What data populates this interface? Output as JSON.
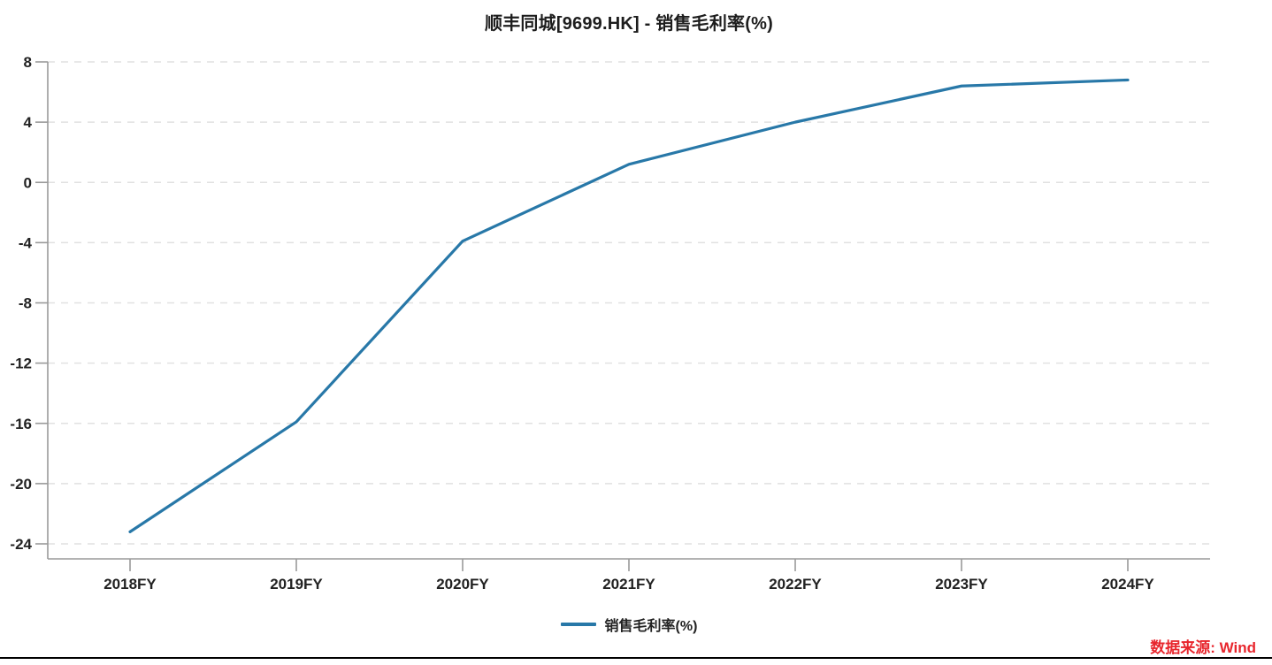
{
  "title": "顺丰同城[9699.HK] - 销售毛利率(%)",
  "legend": {
    "label": "销售毛利率(%)"
  },
  "source": {
    "text": "数据来源: Wind",
    "color": "#e8262d"
  },
  "colors": {
    "series_line": "#2878a8",
    "grid_line": "#e1e1e1",
    "axis_line": "#9a9a9a",
    "tick_label": "#222222",
    "title_text": "#1d1d1d",
    "source_text": "#e8262d",
    "background": "#ffffff",
    "bottom_rule": "#000000"
  },
  "chart_data": {
    "type": "line",
    "title": "顺丰同城[9699.HK] - 销售毛利率(%)",
    "categories": [
      "2018FY",
      "2019FY",
      "2020FY",
      "2021FY",
      "2022FY",
      "2023FY",
      "2024FY"
    ],
    "series": [
      {
        "name": "销售毛利率(%)",
        "color": "#2878a8",
        "values": [
          -23.2,
          -15.9,
          -3.9,
          1.2,
          4.0,
          6.4,
          6.8
        ]
      }
    ],
    "xlabel": "",
    "ylabel": "",
    "ylim": [
      -24,
      8
    ],
    "yticks": [
      8,
      4,
      0,
      -4,
      -8,
      -12,
      -16,
      -20,
      -24
    ],
    "grid": "horizontal-dashed",
    "legend_position": "bottom",
    "source_label": "数据来源: Wind"
  }
}
